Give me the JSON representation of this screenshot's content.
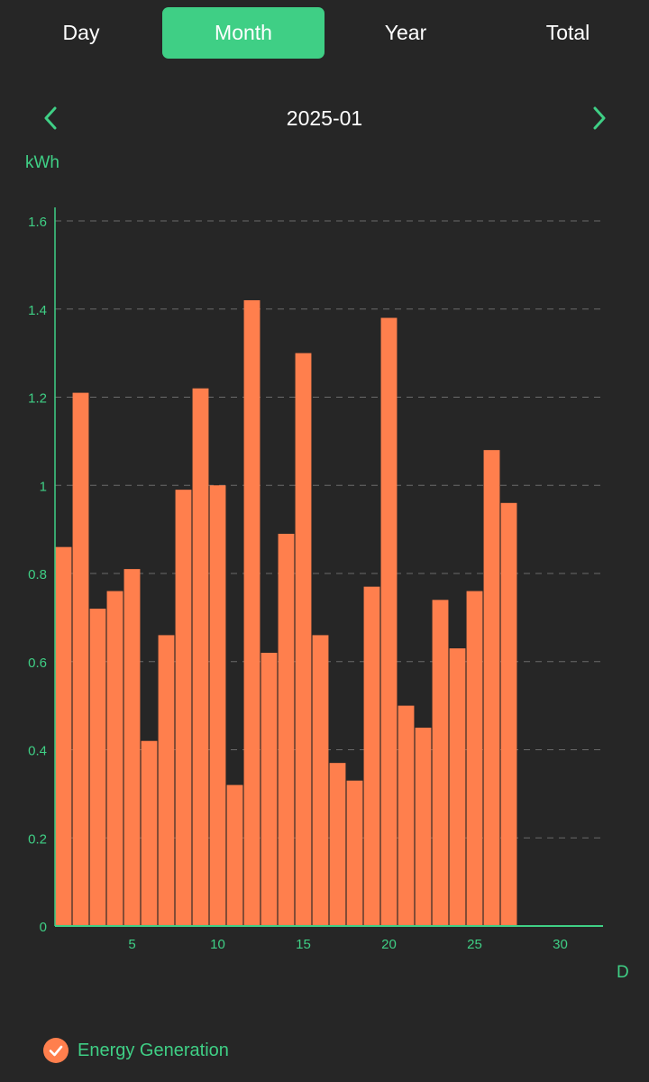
{
  "tabs": [
    {
      "label": "Day",
      "active": false
    },
    {
      "label": "Month",
      "active": true
    },
    {
      "label": "Year",
      "active": false
    },
    {
      "label": "Total",
      "active": false
    }
  ],
  "period": {
    "label": "2025-01"
  },
  "colors": {
    "accent": "#3fcf85",
    "bar": "#ff7f4d",
    "background": "#262626",
    "text": "#ffffff"
  },
  "icons": {
    "prev": "chevron-left-icon",
    "next": "chevron-right-icon",
    "legend": "check-icon"
  },
  "chart_data": {
    "type": "bar",
    "ylabel": "kWh",
    "xlabel": "D",
    "ylim": [
      0,
      1.6
    ],
    "xlim": [
      0.5,
      32.5
    ],
    "yticks": [
      0,
      0.2,
      0.4,
      0.6,
      0.8,
      1,
      1.2,
      1.4,
      1.6
    ],
    "ytick_labels": [
      "0",
      "0.2",
      "0.4",
      "0.6",
      "0.8",
      "1",
      "1.2",
      "1.4",
      "1.6"
    ],
    "xticks": [
      5,
      10,
      15,
      20,
      25,
      30
    ],
    "grid": true,
    "legend_position": "bottom-left",
    "series": [
      {
        "name": "Energy Generation",
        "x": [
          1,
          2,
          3,
          4,
          5,
          6,
          7,
          8,
          9,
          10,
          11,
          12,
          13,
          14,
          15,
          16,
          17,
          18,
          19,
          20,
          21,
          22,
          23,
          24,
          25,
          26,
          27
        ],
        "values": [
          0.86,
          1.21,
          0.72,
          0.76,
          0.81,
          0.42,
          0.66,
          0.99,
          1.22,
          1.0,
          0.32,
          1.42,
          0.62,
          0.89,
          1.3,
          0.66,
          0.37,
          0.33,
          0.77,
          1.38,
          0.5,
          0.45,
          0.74,
          0.63,
          0.76,
          1.08,
          0.96
        ]
      }
    ]
  }
}
